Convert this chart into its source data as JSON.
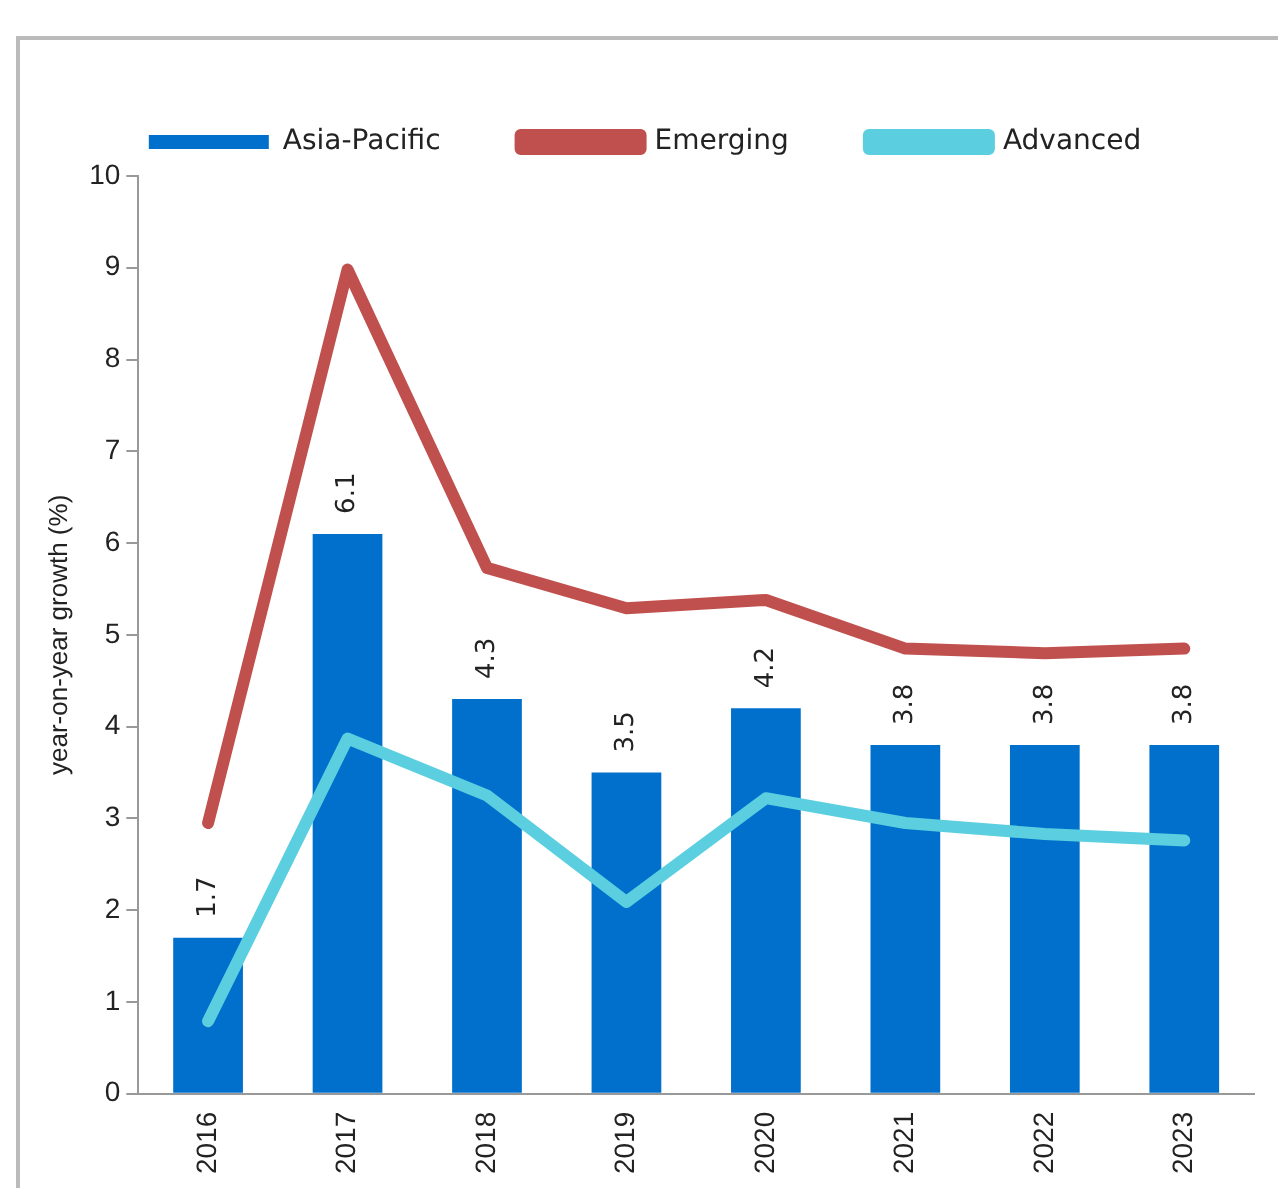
{
  "chart_data": {
    "type": "bar",
    "ylabel": "year-on-year growth (%)",
    "categories": [
      "2016",
      "2017",
      "2018",
      "2019",
      "2020",
      "2021",
      "2022",
      "2023"
    ],
    "series": [
      {
        "name": "Asia-Pacific",
        "color": "#0070cc",
        "values": [
          1.7,
          6.1,
          4.3,
          3.5,
          4.2,
          3.8,
          3.8,
          3.8
        ],
        "value_labels": [
          "1.7",
          "6.1",
          "4.3",
          "3.5",
          "4.2",
          "3.8",
          "3.8",
          "3.8"
        ]
      },
      {
        "name": "Emerging",
        "type": "line",
        "color": "#c0504d",
        "values": [
          2.95,
          8.98,
          5.73,
          5.29,
          5.38,
          4.85,
          4.8,
          4.85
        ]
      },
      {
        "name": "Advanced",
        "type": "line",
        "color": "#5bcfdf",
        "values": [
          0.79,
          3.87,
          3.25,
          2.09,
          3.22,
          2.95,
          2.83,
          2.76
        ]
      }
    ],
    "ylim": [
      0,
      10
    ],
    "yticks": [
      0,
      1,
      2,
      3,
      4,
      5,
      6,
      7,
      8,
      9,
      10
    ],
    "grid": false,
    "legend": "top",
    "marker": "none",
    "line_style": "solid"
  }
}
